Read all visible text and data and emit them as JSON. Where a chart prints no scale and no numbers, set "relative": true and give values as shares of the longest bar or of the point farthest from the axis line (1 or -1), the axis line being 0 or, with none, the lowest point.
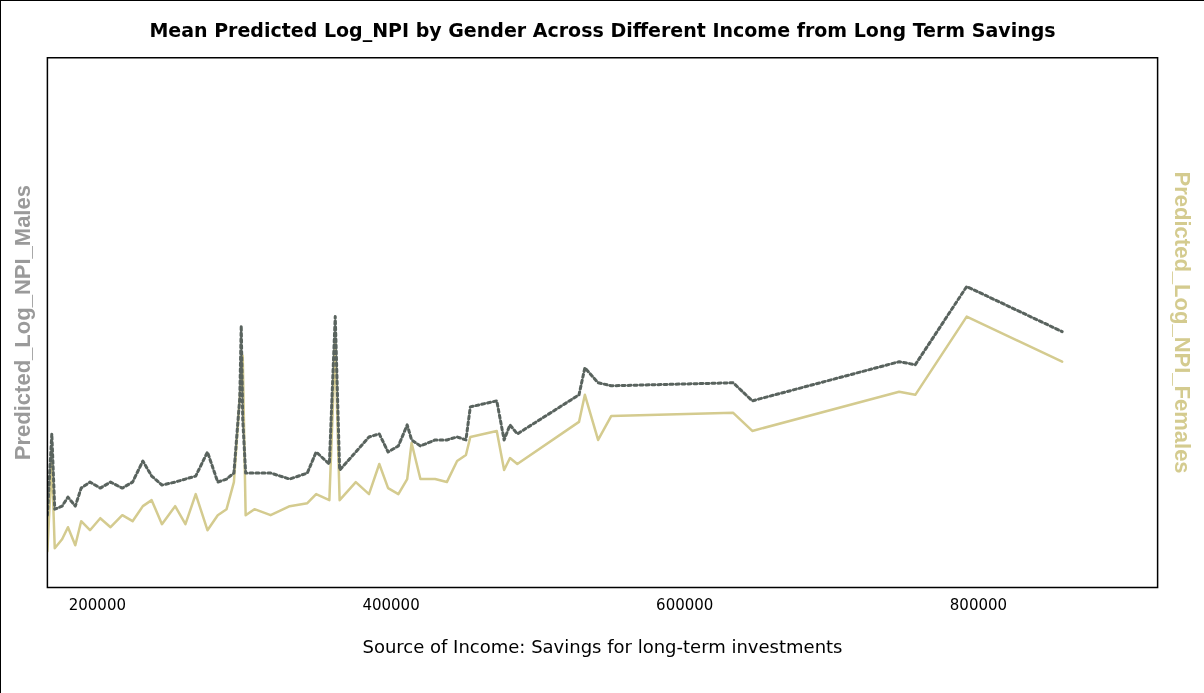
{
  "chart_data": {
    "type": "line",
    "title": "Mean Predicted Log_NPI by Gender Across Different Income from Long Term Savings",
    "xlabel": "Source of Income: Savings for long-term investments",
    "ylabel": "Predicted_Log_NPI_Males",
    "y2label": "Predicted_Log_NPI_Females",
    "relative": true,
    "xlim": [
      166000,
      922000
    ],
    "xticks": [
      200000,
      400000,
      600000,
      800000
    ],
    "tick_labels": "x",
    "grid": false,
    "legend": false,
    "marker": "none",
    "series": [
      {
        "color": "#59635e",
        "line_style": "dotted",
        "x": [
          166000,
          169000,
          171000,
          176000,
          180000,
          185000,
          189000,
          195000,
          202000,
          209000,
          217000,
          224000,
          231000,
          237000,
          244000,
          253000,
          260000,
          267000,
          275000,
          282000,
          288000,
          293000,
          297000,
          298000,
          299000,
          301000,
          307000,
          318000,
          331000,
          343000,
          349000,
          358000,
          362000,
          365000,
          376000,
          385000,
          392000,
          398000,
          405000,
          411000,
          414000,
          420000,
          430000,
          438000,
          445000,
          451000,
          454000,
          472000,
          477000,
          481000,
          486000,
          528000,
          532000,
          541000,
          550000,
          633000,
          646000,
          746000,
          757000,
          792000,
          857000
        ],
        "values": [
          0.24,
          0.51,
          0.26,
          0.27,
          0.3,
          0.27,
          0.33,
          0.35,
          0.33,
          0.35,
          0.33,
          0.35,
          0.42,
          0.37,
          0.34,
          0.35,
          0.36,
          0.37,
          0.45,
          0.35,
          0.36,
          0.38,
          0.63,
          0.87,
          0.56,
          0.38,
          0.38,
          0.38,
          0.36,
          0.38,
          0.45,
          0.41,
          0.9,
          0.39,
          0.45,
          0.5,
          0.51,
          0.45,
          0.47,
          0.54,
          0.49,
          0.47,
          0.49,
          0.49,
          0.5,
          0.49,
          0.6,
          0.62,
          0.49,
          0.54,
          0.51,
          0.64,
          0.73,
          0.68,
          0.67,
          0.68,
          0.62,
          0.75,
          0.74,
          1.0,
          0.85
        ]
      },
      {
        "color": "#d4cb8f",
        "line_style": "solid",
        "x": [
          166000,
          169000,
          171000,
          176000,
          180000,
          185000,
          189000,
          195000,
          202000,
          209000,
          217000,
          224000,
          231000,
          237000,
          244000,
          253000,
          260000,
          267000,
          275000,
          282000,
          288000,
          293000,
          297000,
          298000,
          299000,
          301000,
          307000,
          318000,
          331000,
          343000,
          349000,
          358000,
          362000,
          365000,
          376000,
          385000,
          392000,
          398000,
          405000,
          411000,
          414000,
          420000,
          430000,
          438000,
          445000,
          451000,
          454000,
          472000,
          477000,
          481000,
          486000,
          528000,
          532000,
          541000,
          550000,
          633000,
          646000,
          746000,
          757000,
          792000,
          857000
        ],
        "values": [
          0.12,
          0.42,
          0.13,
          0.16,
          0.2,
          0.14,
          0.22,
          0.19,
          0.23,
          0.2,
          0.24,
          0.22,
          0.27,
          0.29,
          0.21,
          0.27,
          0.21,
          0.31,
          0.19,
          0.24,
          0.26,
          0.35,
          0.63,
          0.7,
          0.77,
          0.24,
          0.26,
          0.24,
          0.27,
          0.28,
          0.31,
          0.29,
          0.81,
          0.29,
          0.35,
          0.31,
          0.41,
          0.33,
          0.31,
          0.36,
          0.48,
          0.36,
          0.36,
          0.35,
          0.42,
          0.44,
          0.5,
          0.52,
          0.39,
          0.43,
          0.41,
          0.55,
          0.64,
          0.49,
          0.57,
          0.58,
          0.52,
          0.65,
          0.64,
          0.9,
          0.75
        ]
      }
    ]
  }
}
